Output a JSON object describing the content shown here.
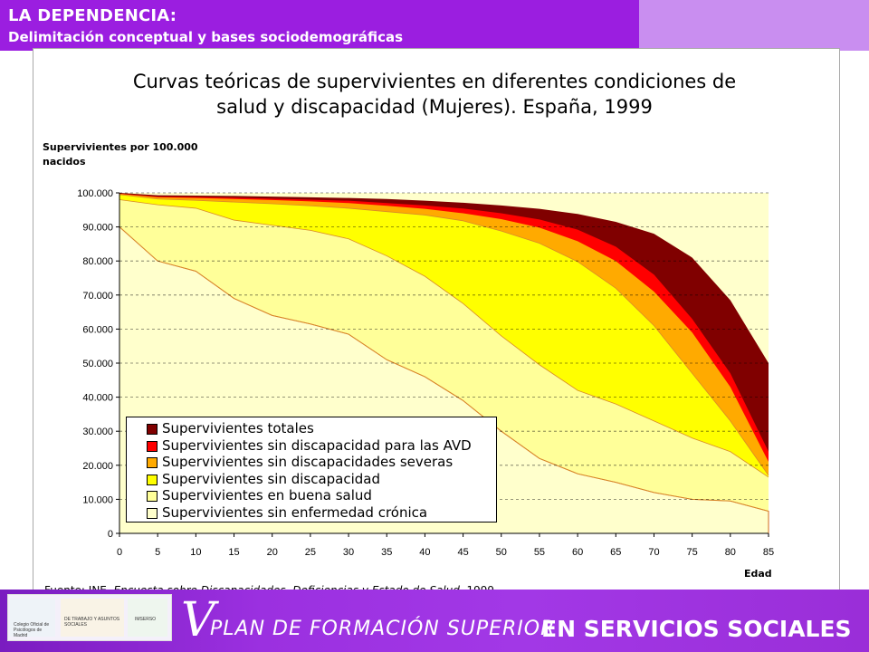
{
  "header": {
    "title": "LA DEPENDENCIA:",
    "subtitle": "Delimitación conceptual y bases sociodemográficas"
  },
  "footer": {
    "v": "V",
    "plan": "PLAN DE FORMACIÓN SUPERIOR",
    "en": "EN SERVICIOS SOCIALES",
    "logo_labels": [
      "Colegio Oficial de Psicólogos de Madrid",
      "DE TRABAJO Y ASUNTOS SOCIALES",
      "IMSERSO"
    ]
  },
  "source": {
    "prefix": "Fuente: INE, ",
    "italic": "Encuesta sobre Discapacidades, Deficiencias y Estado de Salud",
    "suffix": ", 1999."
  },
  "chart_data": {
    "type": "area",
    "title_line1": "Curvas teóricas de supervivientes en diferentes condiciones de",
    "title_line2": "salud y discapacidad (Mujeres). España, 1999",
    "ylabel_line1": "Supervivientes por 100.000",
    "ylabel_line2": "nacidos",
    "xlabel": "Edad",
    "ylim": [
      0,
      100000
    ],
    "xlim": [
      0,
      85
    ],
    "grid": true,
    "legend_position": "bottom-left",
    "x": [
      0,
      5,
      10,
      15,
      20,
      25,
      30,
      35,
      40,
      45,
      50,
      55,
      60,
      65,
      70,
      75,
      80,
      85
    ],
    "xticks": [
      "0",
      "5",
      "10",
      "15",
      "20",
      "25",
      "30",
      "35",
      "40",
      "45",
      "50",
      "55",
      "60",
      "65",
      "70",
      "75",
      "80",
      "85"
    ],
    "yticks": [
      "0",
      "10.000",
      "20.000",
      "30.000",
      "40.000",
      "50.000",
      "60.000",
      "70.000",
      "80.000",
      "90.000",
      "100.000"
    ],
    "series": [
      {
        "name": "Supervivientes totales",
        "color": "#800000",
        "values": [
          100000,
          99300,
          99200,
          99100,
          98900,
          98700,
          98500,
          98200,
          97700,
          97100,
          96300,
          95300,
          93800,
          91500,
          88000,
          81000,
          68500,
          50000
        ]
      },
      {
        "name": "Supervivientes sin discapacidad para las AVD",
        "color": "#ff0000",
        "values": [
          99800,
          98900,
          98800,
          98600,
          98300,
          98000,
          97700,
          97000,
          96300,
          95400,
          94000,
          92200,
          89200,
          84200,
          76000,
          63000,
          47000,
          24000
        ]
      },
      {
        "name": "Supervivientes sin discapacidades severas",
        "color": "#ffaa00",
        "values": [
          99700,
          98700,
          98500,
          98200,
          97900,
          97500,
          97000,
          96200,
          95300,
          94000,
          92300,
          89800,
          85800,
          80000,
          71000,
          59000,
          43000,
          21000
        ]
      },
      {
        "name": "Supervivientes sin discapacidad",
        "color": "#ffff00",
        "values": [
          99500,
          98200,
          97800,
          97300,
          96800,
          96200,
          95500,
          94500,
          93500,
          91800,
          88800,
          85200,
          79800,
          72000,
          61000,
          47000,
          33000,
          17000
        ]
      },
      {
        "name": "Supervivientes en buena salud",
        "color": "#ffff99",
        "values": [
          98000,
          96500,
          95500,
          92000,
          90500,
          89000,
          86500,
          81500,
          75500,
          67500,
          58000,
          49500,
          42000,
          38000,
          33000,
          28000,
          24000,
          16500
        ]
      },
      {
        "name": "Supervivientes sin enfermedad crónica",
        "color": "#ffffcc",
        "values": [
          90000,
          80000,
          77000,
          69000,
          64000,
          61500,
          58500,
          51000,
          46000,
          39000,
          30000,
          22000,
          17500,
          15000,
          12000,
          10000,
          9500,
          6500
        ]
      }
    ]
  }
}
